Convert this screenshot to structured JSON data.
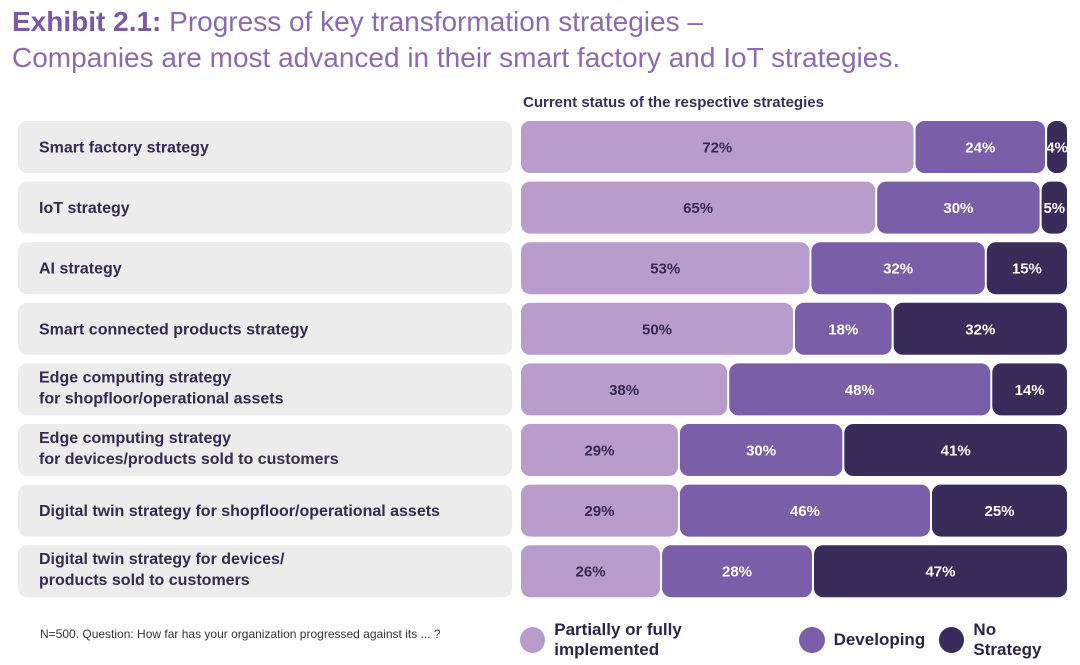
{
  "header": {
    "exhibit": "Exhibit 2.1:",
    "title_line1": "Progress of key transformation strategies –",
    "title_line2": "Companies are most advanced in their smart factory and IoT strategies."
  },
  "status_header": "Current status of the respective strategies",
  "footnote": "N=500. Question: How far has your organization progressed against its ... ?",
  "colors": {
    "implemented": "#b89ccc",
    "developing": "#7b5ea8",
    "no_strategy": "#3a2c5a",
    "label_bg": "#ececec",
    "dark_text": "#352a4f",
    "light_text": "#ffffff"
  },
  "chart_data": {
    "type": "bar",
    "orientation": "horizontal",
    "stacked": true,
    "percent_stacked": true,
    "categories": [
      [
        "Smart factory strategy"
      ],
      [
        "IoT strategy"
      ],
      [
        "AI strategy"
      ],
      [
        "Smart connected products strategy"
      ],
      [
        "Edge computing strategy",
        "for shopfloor/operational assets"
      ],
      [
        "Edge computing strategy",
        "for devices/products sold to customers"
      ],
      [
        "Digital twin strategy for shopfloor/operational assets"
      ],
      [
        "Digital twin strategy for devices/",
        "products sold to customers"
      ]
    ],
    "series": [
      {
        "name": "Partially or fully implemented",
        "color": "#b89ccc",
        "values": [
          72,
          65,
          53,
          50,
          38,
          29,
          29,
          26
        ]
      },
      {
        "name": "Developing",
        "color": "#7b5ea8",
        "values": [
          24,
          30,
          32,
          18,
          48,
          30,
          46,
          28
        ]
      },
      {
        "name": "No Strategy",
        "color": "#3a2c5a",
        "values": [
          4,
          5,
          15,
          32,
          14,
          41,
          25,
          47
        ]
      }
    ],
    "value_suffix": "%",
    "legend_position": "bottom-right",
    "grid": false
  }
}
